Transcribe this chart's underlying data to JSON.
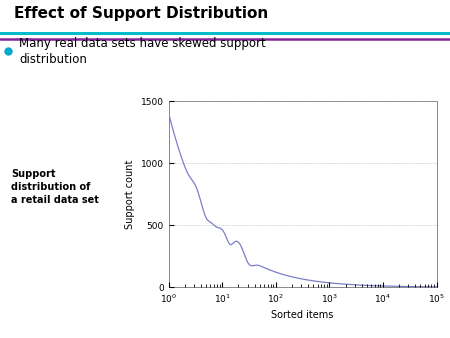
{
  "title": "Effect of Support Distribution",
  "bullet_text": "Many real data sets have skewed support\ndistribution",
  "annotation_text": "Support\ndistribution of\na retail data set",
  "xlabel": "Sorted items",
  "ylabel": "Support count",
  "ylim": [
    0,
    1500
  ],
  "yticks": [
    0,
    500,
    1000,
    1500
  ],
  "line_color": "#7b7ec8",
  "title_color": "#000000",
  "title_fontsize": 11,
  "bullet_fontsize": 8.5,
  "annot_fontsize": 7,
  "axis_fontsize": 7,
  "bullet_color": "#00aacc",
  "header_line1_color": "#00bbcc",
  "header_line2_color": "#882299",
  "bg_color": "#ffffff"
}
